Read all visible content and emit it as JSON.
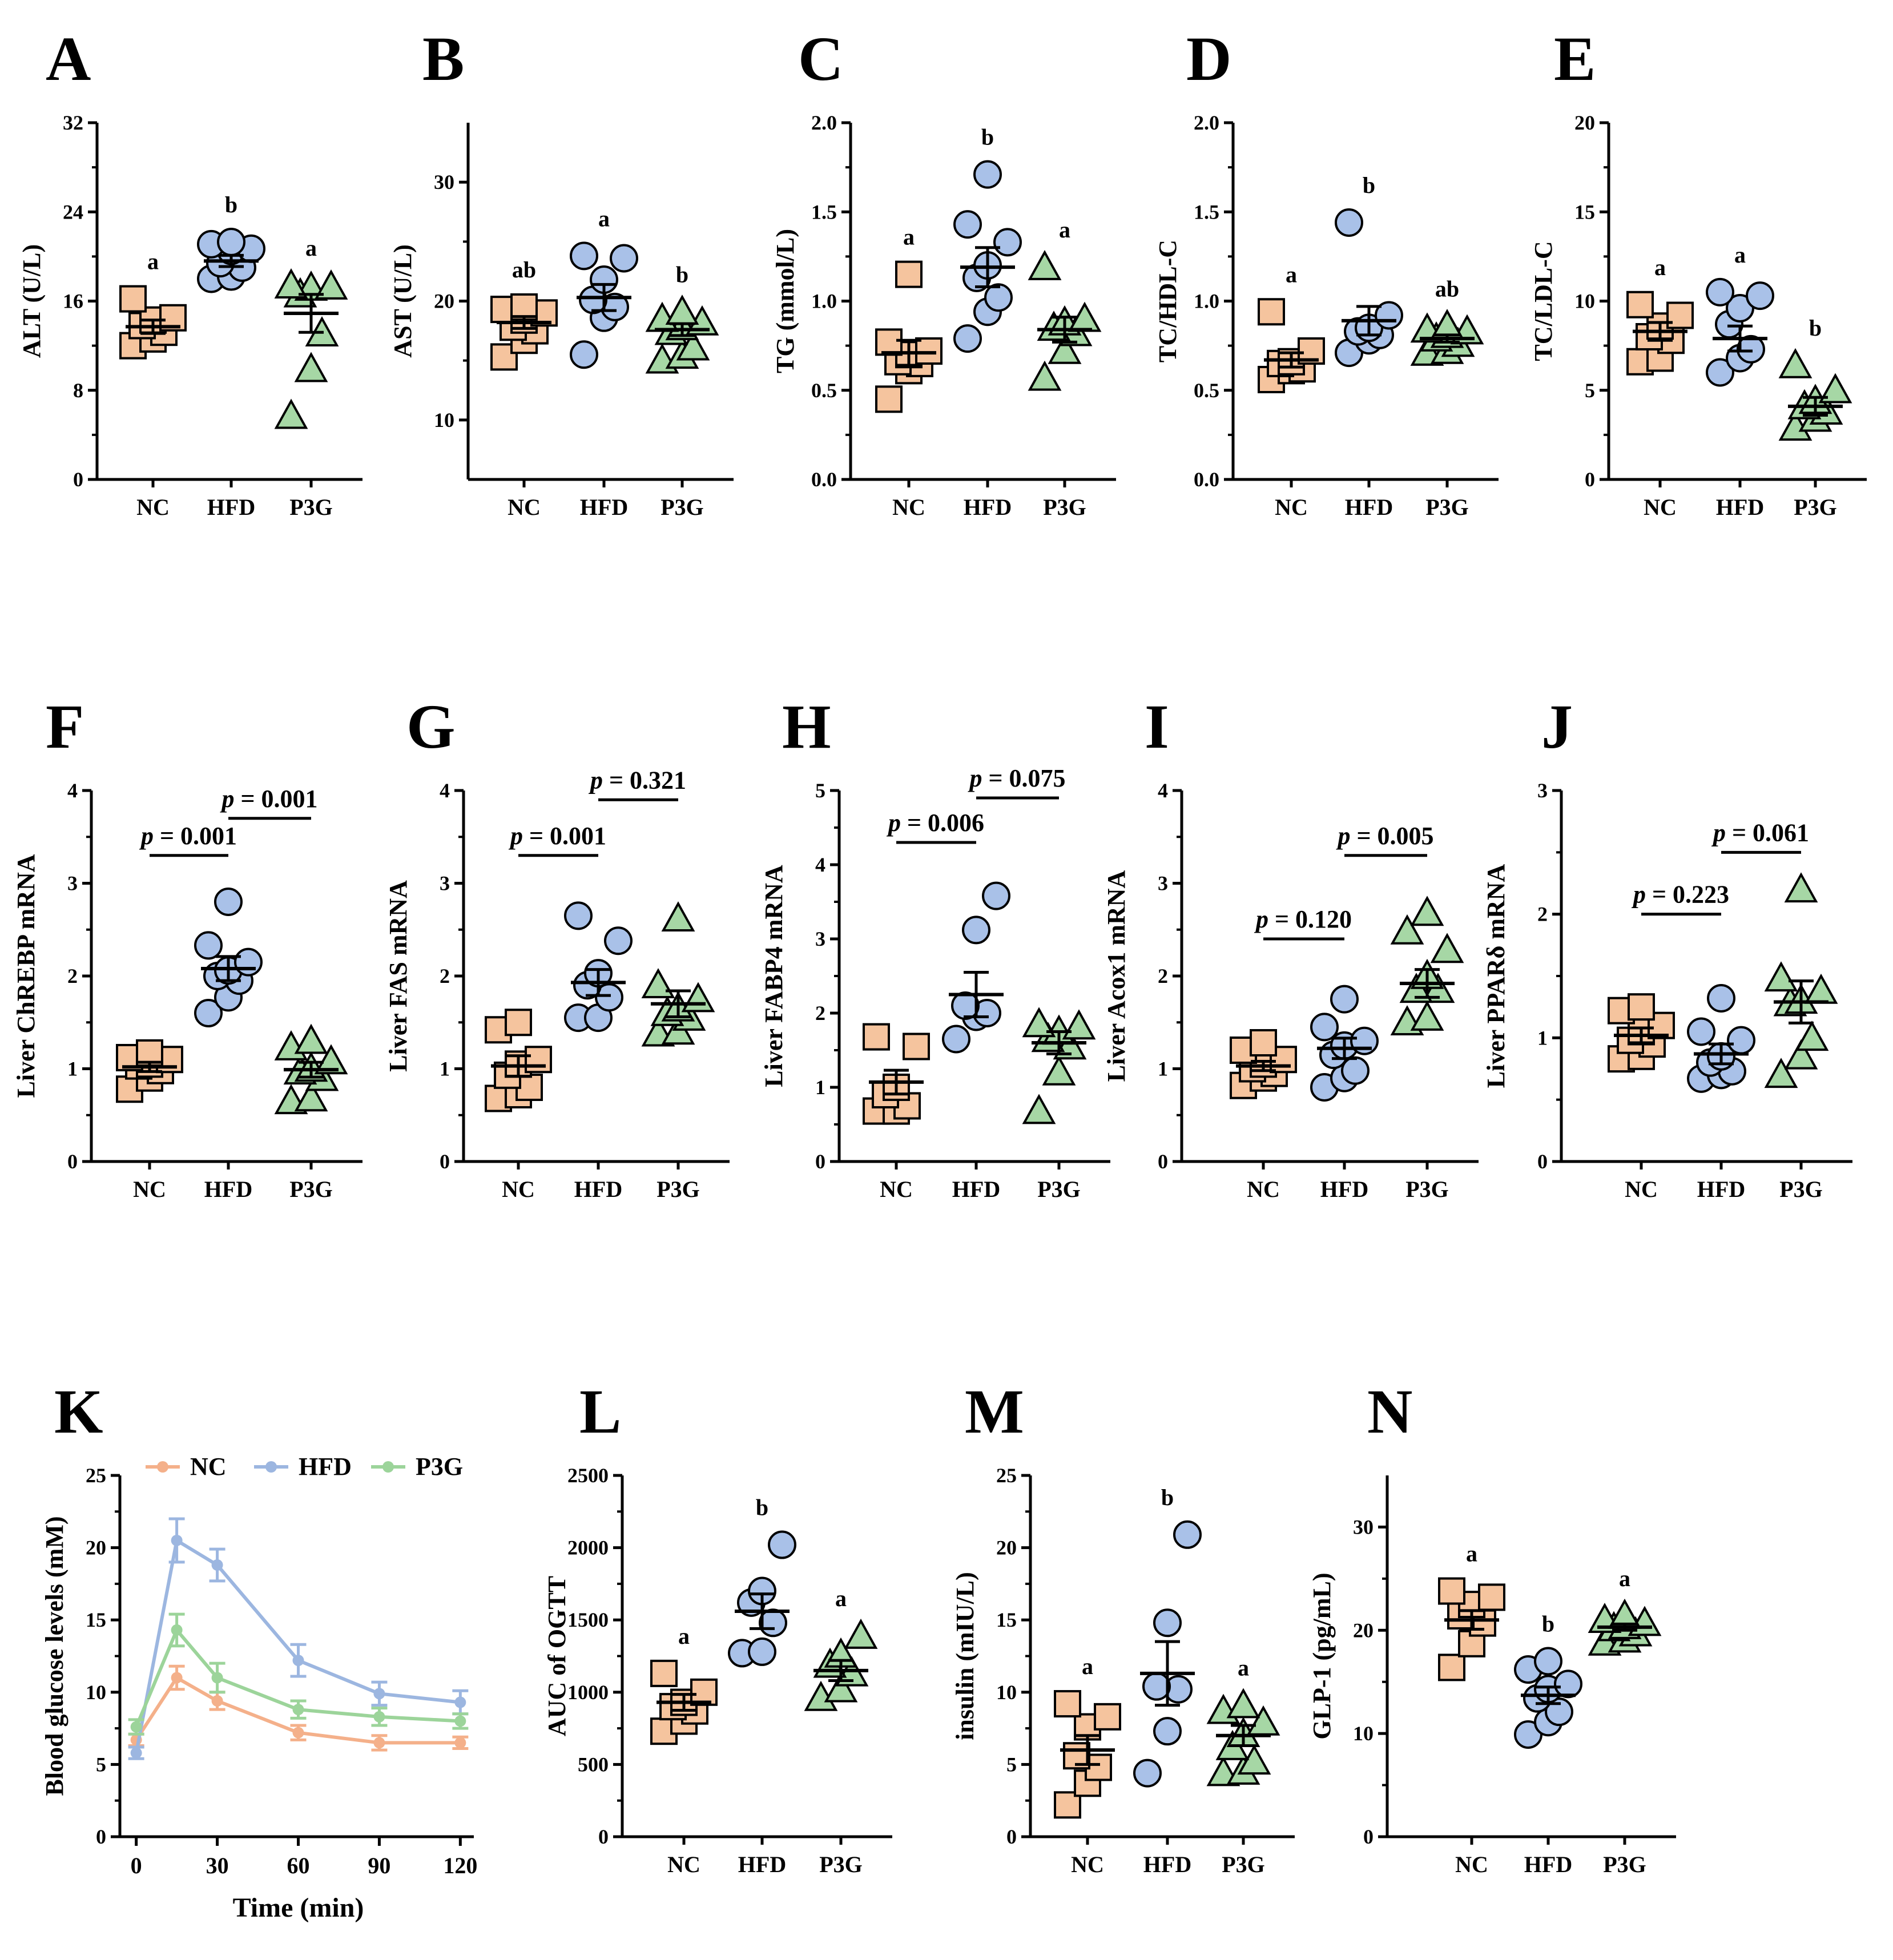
{
  "colors": {
    "NC": "#F5C49E",
    "HFD": "#A9C1E8",
    "P3G": "#A6D7A5",
    "edge": "#000000",
    "line_NC": "#F4B08A",
    "line_HFD": "#9CB6E0",
    "line_P3G": "#9CD49A"
  },
  "chart_data": [
    {
      "label": "A",
      "type": "scatter",
      "ylabel": "ALT (U/L)",
      "ylim": [
        0,
        32
      ],
      "ticks": [
        "0",
        "8",
        "16",
        "24",
        "32"
      ],
      "categories": [
        "NC",
        "HFD",
        "P3G"
      ],
      "letters": [
        "a",
        "b",
        "a"
      ],
      "points": [
        [
          16.2,
          14.3,
          13.2,
          12.6,
          13.8,
          14.5,
          12.0
        ],
        [
          20.7,
          19.4,
          21.1,
          18.2,
          20.5,
          19.0,
          18.0,
          21.3
        ],
        [
          17.4,
          16.6,
          17.3,
          13.1,
          9.9,
          5.7,
          17.2
        ]
      ],
      "mean": [
        13.7,
        19.6,
        14.9
      ],
      "sem": [
        0.6,
        0.5,
        1.7
      ]
    },
    {
      "label": "B",
      "type": "scatter",
      "ylabel": "AST (U/L)",
      "ylim": [
        5,
        35
      ],
      "ticks": [
        "10",
        "20",
        "30"
      ],
      "categories": [
        "NC",
        "HFD",
        "P3G"
      ],
      "letters": [
        "ab",
        "a",
        "b"
      ],
      "points": [
        [
          19.3,
          19.5,
          18.4,
          17.5,
          16.7,
          15.3,
          19.0,
          17.8
        ],
        [
          23.8,
          23.6,
          21.8,
          20.1,
          19.5,
          18.6,
          15.5
        ],
        [
          19.1,
          18.5,
          17.4,
          17.8,
          16.1,
          15.0,
          15.4,
          18.2
        ]
      ],
      "mean": [
        18.2,
        20.3,
        17.6
      ],
      "sem": [
        0.5,
        1.1,
        0.5
      ]
    },
    {
      "label": "C",
      "type": "scatter",
      "ylabel": "TG (mmol/L)",
      "ylim": [
        0,
        2.0
      ],
      "ticks": [
        "0.0",
        "0.5",
        "1.0",
        "1.5",
        "2.0"
      ],
      "categories": [
        "NC",
        "HFD",
        "P3G"
      ],
      "letters": [
        "a",
        "b",
        "a"
      ],
      "points": [
        [
          1.15,
          0.77,
          0.72,
          0.7,
          0.66,
          0.65,
          0.61,
          0.45
        ],
        [
          1.71,
          1.43,
          1.33,
          1.2,
          1.13,
          1.02,
          0.94,
          0.79
        ],
        [
          1.19,
          0.9,
          0.88,
          0.85,
          0.82,
          0.72,
          0.57
        ]
      ],
      "mean": [
        0.71,
        1.19,
        0.84
      ],
      "sem": [
        0.07,
        0.11,
        0.07
      ]
    },
    {
      "label": "D",
      "type": "scatter",
      "ylabel": "TC/HDL-C",
      "ylim": [
        0,
        2.0
      ],
      "ticks": [
        "0.0",
        "0.5",
        "1.0",
        "1.5",
        "2.0"
      ],
      "categories": [
        "NC",
        "HFD",
        "P3G"
      ],
      "letters": [
        "a",
        "b",
        "ab"
      ],
      "points": [
        [
          0.94,
          0.72,
          0.65,
          0.66,
          0.62,
          0.61,
          0.56
        ],
        [
          1.44,
          0.92,
          0.85,
          0.83,
          0.78,
          0.71,
          0.81
        ],
        [
          0.86,
          0.84,
          0.81,
          0.79,
          0.76,
          0.72,
          0.71,
          0.83
        ]
      ],
      "mean": [
        0.67,
        0.89,
        0.79
      ],
      "sem": [
        0.04,
        0.08,
        0.02
      ]
    },
    {
      "label": "E",
      "type": "scatter",
      "ylabel": "TC/LDL-C",
      "ylim": [
        0,
        20
      ],
      "ticks": [
        "0",
        "5",
        "10",
        "15",
        "20"
      ],
      "categories": [
        "NC",
        "HFD",
        "P3G"
      ],
      "letters": [
        "a",
        "a",
        "b"
      ],
      "points": [
        [
          9.8,
          9.2,
          8.6,
          8.0,
          7.8,
          6.8,
          6.6
        ],
        [
          10.5,
          10.3,
          9.6,
          8.7,
          7.3,
          6.8,
          6.0
        ],
        [
          6.4,
          5.0,
          4.4,
          4.1,
          3.8,
          3.4,
          2.9
        ]
      ],
      "mean": [
        8.3,
        7.9,
        4.1
      ],
      "sem": [
        0.5,
        0.7,
        0.5
      ]
    },
    {
      "label": "F",
      "type": "scatter",
      "ylabel": "Liver ChREBP mRNA",
      "ylim": [
        0,
        4
      ],
      "ticks": [
        "0",
        "1",
        "2",
        "3",
        "4"
      ],
      "categories": [
        "NC",
        "HFD",
        "P3G"
      ],
      "points": [
        [
          1.17,
          1.12,
          1.1,
          1.05,
          1.03,
          0.98,
          0.9,
          0.78
        ],
        [
          2.8,
          2.33,
          2.15,
          2.06,
          2.0,
          1.95,
          1.77,
          1.6
        ],
        [
          1.3,
          1.23,
          1.08,
          1.0,
          0.97,
          0.9,
          0.68,
          0.65
        ]
      ],
      "mean": [
        1.02,
        2.08,
        0.99
      ],
      "sem": [
        0.05,
        0.13,
        0.08
      ],
      "pvalues": [
        {
          "text": "p = 0.001",
          "from": 0,
          "to": 1,
          "y": 3.3
        },
        {
          "text": "p = 0.001",
          "from": 1,
          "to": 2,
          "y": 3.7
        }
      ]
    },
    {
      "label": "G",
      "type": "scatter",
      "ylabel": "Liver FAS mRNA",
      "ylim": [
        0,
        4
      ],
      "ticks": [
        "0",
        "1",
        "2",
        "3",
        "4"
      ],
      "categories": [
        "NC",
        "HFD",
        "P3G"
      ],
      "points": [
        [
          1.5,
          1.42,
          1.1,
          1.05,
          0.93,
          0.8,
          0.72,
          0.68
        ],
        [
          2.65,
          2.38,
          2.03,
          1.9,
          1.77,
          1.55,
          1.55
        ],
        [
          2.62,
          1.9,
          1.75,
          1.65,
          1.6,
          1.55,
          1.4,
          1.38
        ]
      ],
      "mean": [
        1.03,
        1.93,
        1.7
      ],
      "sem": [
        0.11,
        0.14,
        0.14
      ],
      "pvalues": [
        {
          "text": "p = 0.001",
          "from": 0,
          "to": 1,
          "y": 3.3
        },
        {
          "text": "p = 0.321",
          "from": 1,
          "to": 2,
          "y": 3.9
        }
      ]
    },
    {
      "label": "H",
      "type": "scatter",
      "ylabel": "Liver FABP4 mRNA",
      "ylim": [
        0,
        5
      ],
      "ticks": [
        "0",
        "1",
        "2",
        "3",
        "4",
        "5"
      ],
      "categories": [
        "NC",
        "HFD",
        "P3G"
      ],
      "points": [
        [
          1.68,
          1.55,
          1.0,
          0.9,
          0.75,
          0.68,
          0.68
        ],
        [
          3.58,
          3.12,
          2.1,
          2.0,
          1.95,
          1.65
        ],
        [
          1.85,
          1.82,
          1.75,
          1.65,
          1.55,
          1.2,
          0.68
        ]
      ],
      "mean": [
        1.07,
        2.25,
        1.6
      ],
      "sem": [
        0.16,
        0.3,
        0.15
      ],
      "pvalues": [
        {
          "text": "p = 0.006",
          "from": 0,
          "to": 1,
          "y": 4.3
        },
        {
          "text": "p = 0.075",
          "from": 1,
          "to": 2,
          "y": 4.9
        }
      ]
    },
    {
      "label": "I",
      "type": "scatter",
      "ylabel": "Liver Acox1 mRNA",
      "ylim": [
        0,
        4
      ],
      "ticks": [
        "0",
        "1",
        "2",
        "3",
        "4"
      ],
      "categories": [
        "NC",
        "HFD",
        "P3G"
      ],
      "points": [
        [
          1.28,
          1.2,
          1.1,
          1.05,
          1.0,
          0.95,
          0.9,
          0.82
        ],
        [
          1.75,
          1.45,
          1.3,
          1.25,
          1.15,
          0.98,
          0.9,
          0.8
        ],
        [
          2.68,
          2.48,
          2.28,
          2.0,
          1.85,
          1.85,
          1.55,
          1.5
        ]
      ],
      "mean": [
        1.03,
        1.22,
        1.92
      ],
      "sem": [
        0.05,
        0.11,
        0.15
      ],
      "pvalues": [
        {
          "text": "p = 0.120",
          "from": 0,
          "to": 1,
          "y": 2.4
        },
        {
          "text": "p = 0.005",
          "from": 1,
          "to": 2,
          "y": 3.3
        }
      ]
    },
    {
      "label": "J",
      "type": "scatter",
      "ylabel": "Liver PPARδ mRNA",
      "ylim": [
        0,
        3
      ],
      "ticks": [
        "0",
        "1",
        "2",
        "3"
      ],
      "categories": [
        "NC",
        "HFD",
        "P3G"
      ],
      "points": [
        [
          1.25,
          1.22,
          1.1,
          1.05,
          0.98,
          0.95,
          0.85,
          0.83
        ],
        [
          1.32,
          1.05,
          0.98,
          0.85,
          0.8,
          0.73,
          0.7,
          0.67
        ],
        [
          2.2,
          1.48,
          1.38,
          1.3,
          1.28,
          1.0,
          0.85,
          0.7
        ]
      ],
      "mean": [
        1.02,
        0.87,
        1.29
      ],
      "sem": [
        0.06,
        0.08,
        0.17
      ],
      "pvalues": [
        {
          "text": "p = 0.223",
          "from": 0,
          "to": 1,
          "y": 2.0
        },
        {
          "text": "p = 0.061",
          "from": 1,
          "to": 2,
          "y": 2.5
        }
      ]
    },
    {
      "label": "K",
      "type": "line",
      "ylabel": "Blood glucose levels (mM)",
      "xlabel": "Time (min)",
      "ylim": [
        0,
        25
      ],
      "xlim": [
        -5,
        125
      ],
      "ticks": [
        "0",
        "5",
        "10",
        "15",
        "20",
        "25"
      ],
      "xticks": [
        "0",
        "30",
        "60",
        "90",
        "120"
      ],
      "x": [
        0,
        15,
        30,
        60,
        90,
        120
      ],
      "series": [
        {
          "name": "NC",
          "values": [
            6.7,
            11.0,
            9.4,
            7.2,
            6.5,
            6.5
          ],
          "err": [
            0.4,
            0.8,
            0.6,
            0.5,
            0.5,
            0.4
          ]
        },
        {
          "name": "HFD",
          "values": [
            5.8,
            20.5,
            18.8,
            12.2,
            9.9,
            9.3
          ],
          "err": [
            0.4,
            1.5,
            1.1,
            1.1,
            0.8,
            0.8
          ]
        },
        {
          "name": "P3G",
          "values": [
            7.6,
            14.3,
            11.0,
            8.8,
            8.3,
            8.0
          ],
          "err": [
            0.5,
            1.1,
            1.0,
            0.6,
            0.6,
            0.5
          ]
        }
      ],
      "legend_position": "top"
    },
    {
      "label": "L",
      "type": "scatter",
      "ylabel": "AUC of OGTT",
      "ylim": [
        0,
        2500
      ],
      "ticks": [
        "0",
        "500",
        "1000",
        "1500",
        "2000",
        "2500"
      ],
      "categories": [
        "NC",
        "HFD",
        "P3G"
      ],
      "letters": [
        "a",
        "b",
        "a"
      ],
      "points": [
        [
          1130,
          1000,
          930,
          900,
          870,
          800,
          730
        ],
        [
          2020,
          1700,
          1620,
          1480,
          1280,
          1270
        ],
        [
          1390,
          1260,
          1190,
          1130,
          1020,
          960
        ]
      ],
      "mean": [
        930,
        1560,
        1150
      ],
      "sem": [
        55,
        120,
        70
      ]
    },
    {
      "label": "M",
      "type": "scatter",
      "ylabel": "insulin (mIU/L)",
      "ylim": [
        0,
        25
      ],
      "ticks": [
        "0",
        "5",
        "10",
        "15",
        "20",
        "25"
      ],
      "categories": [
        "NC",
        "HFD",
        "P3G"
      ],
      "letters": [
        "a",
        "b",
        "a"
      ],
      "points": [
        [
          9.2,
          8.3,
          7.6,
          5.6,
          4.8,
          3.7,
          2.2
        ],
        [
          20.9,
          14.8,
          10.4,
          10.2,
          7.3,
          4.4
        ],
        [
          9.1,
          8.7,
          7.9,
          7.1,
          6.2,
          5.2,
          4.4,
          4.5
        ]
      ],
      "mean": [
        6.0,
        11.3,
        7.0
      ],
      "sem": [
        1.0,
        2.2,
        0.7
      ]
    },
    {
      "label": "N",
      "type": "scatter",
      "ylabel": "GLP-1 (pg/mL)",
      "ylim": [
        0,
        35
      ],
      "ticks": [
        "0",
        "10",
        "20",
        "30"
      ],
      "categories": [
        "NC",
        "HFD",
        "P3G"
      ],
      "letters": [
        "a",
        "b",
        "a"
      ],
      "points": [
        [
          23.8,
          23.2,
          22.5,
          21.4,
          20.7,
          18.7,
          16.4
        ],
        [
          17.0,
          16.2,
          14.8,
          14.3,
          13.4,
          12.1,
          11.1,
          9.9
        ],
        [
          21.4,
          21.0,
          20.7,
          20.4,
          20.2,
          19.7,
          19.1,
          18.8
        ]
      ],
      "mean": [
        21.0,
        13.7,
        20.3
      ],
      "sem": [
        0.9,
        0.8,
        0.3
      ]
    }
  ]
}
